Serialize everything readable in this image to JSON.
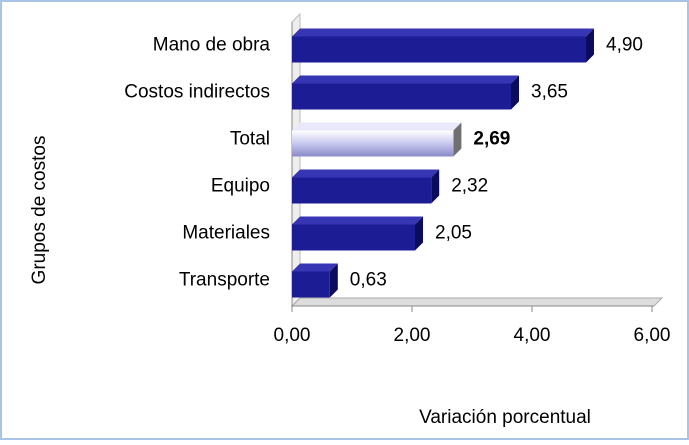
{
  "chart_data": {
    "type": "bar",
    "orientation": "horizontal",
    "categories": [
      "Mano de obra",
      "Costos indirectos",
      "Total",
      "Equipo",
      "Materiales",
      "Transporte"
    ],
    "values": [
      4.9,
      3.65,
      2.69,
      2.32,
      2.05,
      0.63
    ],
    "value_labels": [
      "4,90",
      "3,65",
      "2,69",
      "2,32",
      "2,05",
      "0,63"
    ],
    "colors": [
      "#1c1c94",
      "#1c1c94",
      "#b8b8e8",
      "#1c1c94",
      "#1c1c94",
      "#1c1c94"
    ],
    "highlight_category": "Total",
    "xlim": [
      0,
      6
    ],
    "xticks": [
      {
        "value": 0,
        "label": "0,00"
      },
      {
        "value": 2,
        "label": "2,00"
      },
      {
        "value": 4,
        "label": "4,00"
      },
      {
        "value": 6,
        "label": "6,00"
      }
    ],
    "xlabel": "Variación porcentual",
    "ylabel": "Grupos de costos"
  }
}
